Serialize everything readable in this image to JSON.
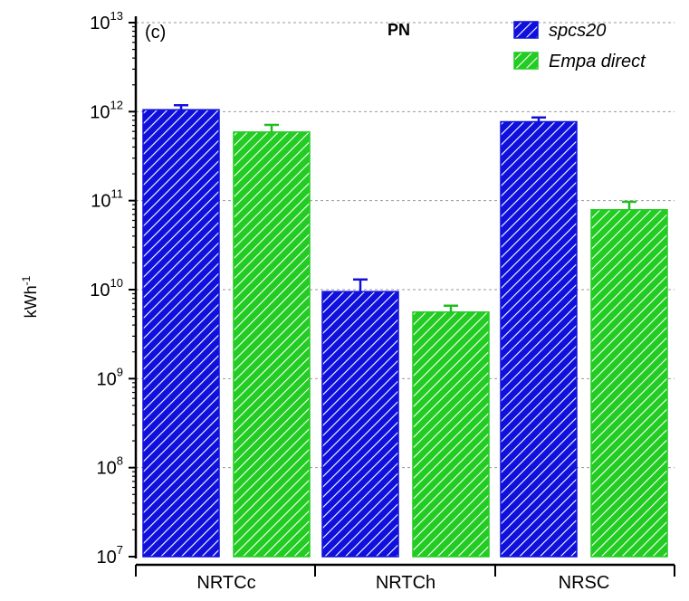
{
  "chart_data": {
    "type": "bar",
    "panel_label": "(c)",
    "title": "PN",
    "ylabel": "kWh",
    "ylabel_exponent": "-1",
    "yscale": "log",
    "ylim": [
      10000000.0,
      10000000000000.0
    ],
    "yticks": [
      {
        "base": "10",
        "exp": "7"
      },
      {
        "base": "10",
        "exp": "8"
      },
      {
        "base": "10",
        "exp": "9"
      },
      {
        "base": "10",
        "exp": "10"
      },
      {
        "base": "10",
        "exp": "11"
      },
      {
        "base": "10",
        "exp": "12"
      },
      {
        "base": "10",
        "exp": "13"
      }
    ],
    "categories": [
      "NRTCc",
      "NRTCh",
      "NRSC"
    ],
    "series": [
      {
        "name": "spcs20",
        "color": "#1010dd",
        "values": [
          1050000000000.0,
          9500000000.0,
          770000000000.0
        ],
        "error_upper": [
          1180000000000.0,
          13000000000.0,
          860000000000.0
        ]
      },
      {
        "name": "Empa direct",
        "color": "#22cc22",
        "values": [
          590000000000.0,
          5600000000.0,
          79000000000.0
        ],
        "error_upper": [
          710000000000.0,
          6600000000.0,
          97000000000.0
        ]
      }
    ],
    "grid": "horizontal dashed",
    "legend_position": "top-right"
  }
}
